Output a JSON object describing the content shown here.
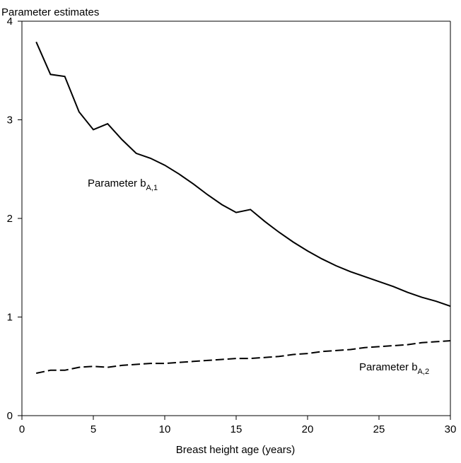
{
  "chart_data": {
    "type": "line",
    "title": "Parameter estimates",
    "xlabel": "Breast height age (years)",
    "ylabel": "",
    "xlim": [
      0,
      30
    ],
    "ylim": [
      0,
      4
    ],
    "x_ticks": [
      0,
      5,
      10,
      15,
      20,
      25,
      30
    ],
    "y_ticks": [
      0,
      1,
      2,
      3,
      4
    ],
    "grid": false,
    "legend": "none",
    "x": [
      1,
      2,
      3,
      4,
      5,
      6,
      7,
      8,
      9,
      10,
      11,
      12,
      13,
      14,
      15,
      16,
      17,
      18,
      19,
      20,
      21,
      22,
      23,
      24,
      25,
      26,
      27,
      28,
      29,
      30
    ],
    "series": [
      {
        "name": "Parameter b_A,1",
        "label_main": "Parameter  b",
        "label_sub": "A,1",
        "style": "solid",
        "values": [
          3.79,
          3.46,
          3.44,
          3.08,
          2.9,
          2.96,
          2.8,
          2.66,
          2.61,
          2.54,
          2.45,
          2.35,
          2.24,
          2.14,
          2.06,
          2.09,
          1.97,
          1.86,
          1.76,
          1.67,
          1.59,
          1.52,
          1.46,
          1.41,
          1.36,
          1.31,
          1.25,
          1.2,
          1.16,
          1.11
        ]
      },
      {
        "name": "Parameter b_A,2",
        "label_main": "Parameter  b",
        "label_sub": "A,2",
        "style": "dashed",
        "values": [
          0.43,
          0.46,
          0.46,
          0.49,
          0.5,
          0.49,
          0.51,
          0.52,
          0.53,
          0.53,
          0.54,
          0.55,
          0.56,
          0.57,
          0.58,
          0.58,
          0.59,
          0.6,
          0.62,
          0.63,
          0.65,
          0.66,
          0.67,
          0.69,
          0.7,
          0.71,
          0.72,
          0.74,
          0.75,
          0.76
        ]
      }
    ]
  }
}
